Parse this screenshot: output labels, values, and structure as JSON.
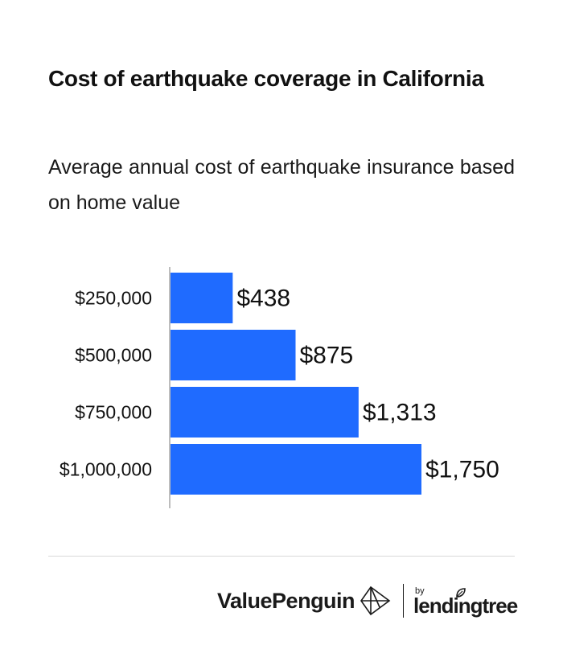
{
  "title": "Cost of earthquake coverage in California",
  "subtitle": "Average annual cost of earthquake insurance based on home value",
  "chart_data": {
    "type": "bar",
    "orientation": "horizontal",
    "categories": [
      "$250,000",
      "$500,000",
      "$750,000",
      "$1,000,000"
    ],
    "values": [
      438,
      875,
      1313,
      1750
    ],
    "data_labels": [
      "$438",
      "$875",
      "$1,313",
      "$1,750"
    ],
    "title": "Cost of earthquake coverage in California",
    "subtitle": "Average annual cost of earthquake insurance based on home value",
    "xlabel": "",
    "ylabel": "",
    "xlim": [
      0,
      1750
    ],
    "grid": false,
    "legend": "none",
    "colors": {
      "bar": "#1f6bff",
      "axis": "#bdbdbd",
      "text": "#111111"
    }
  },
  "footer": {
    "brand": "ValuePenguin",
    "partner_by": "by",
    "partner_name": "lendingtree"
  },
  "icons": [
    "valuepenguin-logo-icon",
    "lendingtree-leaf-icon"
  ]
}
